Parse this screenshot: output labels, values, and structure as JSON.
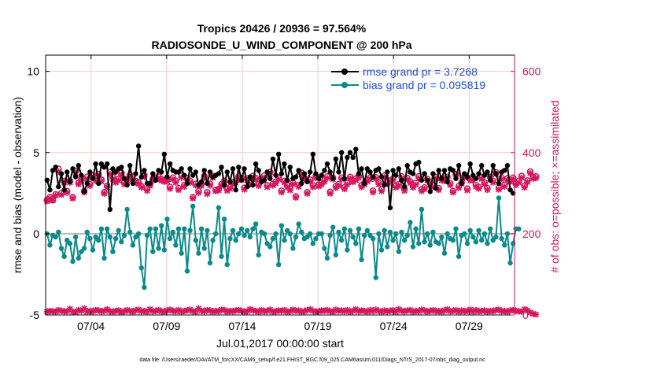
{
  "chart_data": {
    "type": "line",
    "title_line1": "Tropics 20426 / 20936 = 97.564%",
    "title_line2": "RADIOSONDE_U_WIND_COMPONENT @ 200 hPa",
    "xlabel": "Jul.01,2017 00:00:00 start",
    "ylabel_left": "rmse and bias (model - observation)",
    "ylabel_right": "# of obs: o=possible; ×=assimilated",
    "footer": "data file: /Users/raeder/DAI/ATM_forcXX/CAM6_setup/f.e21.FHIST_BGC.f09_025.CAM6assim.011/Diags_NTrS_2017-07/obs_diag_output.nc",
    "x_ticks": [
      {
        "day": 4,
        "label": "07/04"
      },
      {
        "day": 9,
        "label": "07/09"
      },
      {
        "day": 14,
        "label": "07/14"
      },
      {
        "day": 19,
        "label": "07/19"
      },
      {
        "day": 24,
        "label": "07/24"
      },
      {
        "day": 29,
        "label": "07/29"
      }
    ],
    "xlim_days": [
      1,
      32
    ],
    "ylim_left": [
      -5,
      11
    ],
    "yticks_left": [
      {
        "value": 10,
        "label": "10"
      },
      {
        "value": 5,
        "label": "5"
      },
      {
        "value": 0,
        "label": "0"
      },
      {
        "value": -5,
        "label": "-5"
      }
    ],
    "ylim_right": [
      0,
      640
    ],
    "yticks_right": [
      {
        "value": 0,
        "label": "0"
      },
      {
        "value": 200,
        "label": "200"
      },
      {
        "value": 400,
        "label": "400"
      },
      {
        "value": 600,
        "label": "600"
      }
    ],
    "grid": true,
    "legend": [
      {
        "label": "rmse grand pr = 3.7268",
        "color": "#000000"
      },
      {
        "label": "bias grand pr = 0.095819",
        "color": "#0a8a8a"
      }
    ],
    "colors": {
      "rmse": "#000000",
      "bias": "#0a8a8a",
      "obs": "#d6155e",
      "legend_text": "#1f4fd8",
      "zero_line": "#bcbcbc",
      "grid": "#f2c8c8"
    },
    "series": [
      {
        "name": "rmse",
        "axis": "left",
        "values": [
          3.3,
          2.7,
          3.9,
          4.1,
          2.9,
          3.7,
          2.7,
          3.8,
          3.2,
          4.0,
          3.5,
          4.2,
          3.6,
          2.6,
          3.1,
          3.8,
          3.4,
          4.3,
          3.1,
          4.3,
          4.1,
          4.3,
          1.5,
          4.0,
          3.8,
          4.0,
          4.1,
          3.4,
          3.0,
          4.2,
          3.1,
          3.7,
          5.4,
          3.5,
          3.9,
          3.1,
          3.1,
          3.7,
          3.3,
          3.9,
          3.8,
          4.9,
          3.5,
          4.3,
          3.9,
          3.8,
          3.8,
          4.0,
          3.6,
          3.1,
          4.0,
          3.6,
          3.8,
          3.0,
          3.2,
          3.9,
          3.1,
          3.8,
          3.5,
          3.6,
          3.7,
          4.1,
          3.0,
          3.8,
          3.2,
          4.0,
          2.7,
          4.1,
          3.3,
          4.0,
          2.9,
          3.5,
          3.0,
          4.3,
          3.9,
          3.2,
          3.3,
          3.8,
          3.4,
          4.6,
          3.6,
          4.9,
          3.7,
          4.3,
          3.3,
          4.1,
          3.4,
          3.5,
          3.9,
          3.1,
          3.7,
          3.2,
          3.8,
          4.9,
          3.7,
          3.4,
          3.6,
          3.9,
          4.3,
          3.8,
          3.4,
          4.6,
          3.8,
          5.0,
          3.4,
          4.7,
          5.0,
          4.7,
          5.2,
          3.7,
          4.0,
          3.1,
          4.0,
          3.8,
          3.5,
          3.9,
          4.0,
          3.5,
          3.0,
          3.8,
          1.6,
          3.9,
          3.6,
          4.0,
          3.3,
          2.9,
          4.2,
          3.8,
          3.7,
          4.3,
          4.4,
          3.3,
          3.7,
          3.3,
          2.6,
          3.7,
          2.8,
          3.9,
          3.4,
          3.9,
          3.2,
          4.0,
          3.9,
          3.4,
          4.2,
          3.1,
          3.7,
          3.5,
          4.3,
          3.6,
          3.4,
          3.7,
          4.2,
          3.6,
          3.8,
          3.3,
          4.2,
          3.7,
          3.1,
          3.8,
          3.9,
          4.2,
          2.7,
          2.5
        ]
      },
      {
        "name": "bias",
        "axis": "left",
        "values": [
          0.0,
          -0.7,
          -0.1,
          -0.2,
          0.1,
          -0.9,
          -1.4,
          -0.4,
          -0.6,
          -1.7,
          -0.2,
          -1.5,
          -1.1,
          -0.9,
          0.1,
          -0.3,
          -1.0,
          -0.2,
          -0.4,
          0.3,
          -1.5,
          0.3,
          -0.2,
          -1.1,
          -0.3,
          0.2,
          -0.5,
          -0.1,
          1.5,
          0.1,
          -0.7,
          -0.2,
          0.0,
          -2.1,
          -3.3,
          -0.1,
          0.3,
          -1.1,
          0.3,
          -0.9,
          0.5,
          -1.0,
          0.9,
          -0.3,
          0.1,
          -0.7,
          0.3,
          -1.2,
          0.3,
          -2.3,
          0.2,
          1.7,
          -0.4,
          -1.2,
          0.3,
          -0.9,
          0.2,
          -1.8,
          -0.4,
          0.0,
          1.6,
          -1.4,
          0.9,
          -1.9,
          -0.3,
          0.2,
          -0.4,
          0.0,
          0.3,
          -0.1,
          0.2,
          -0.2,
          0.3,
          0.6,
          -1.3,
          0.1,
          0.0,
          -0.6,
          -0.8,
          -0.3,
          0.0,
          -1.9,
          0.5,
          -0.4,
          0.2,
          0.0,
          -0.9,
          -0.2,
          0.6,
          0.1,
          -0.3,
          -0.2,
          0.0,
          -0.6,
          -0.3,
          0.0,
          0.0,
          -0.9,
          -1.5,
          -0.1,
          0.4,
          -1.3,
          0.1,
          -0.4,
          0.3,
          -1.0,
          0.2,
          -0.2,
          -0.6,
          0.3,
          -1.6,
          -0.1,
          0.2,
          -0.1,
          -0.3,
          -2.7,
          0.0,
          -1.0,
          0.2,
          -0.8,
          0.1,
          -0.4,
          0.0,
          -1.1,
          0.1,
          -0.4,
          -0.1,
          0.7,
          -0.8,
          0.3,
          -0.6,
          1.5,
          -0.5,
          0.0,
          -0.7,
          0.1,
          -0.5,
          -0.6,
          -0.2,
          -1.2,
          0.0,
          -0.3,
          -0.4,
          0.3,
          -1.4,
          -0.1,
          0.0,
          -0.6,
          0.2,
          -0.2,
          -0.5,
          0.2,
          -0.4,
          0.0,
          -0.6,
          0.3,
          -0.4,
          -0.2,
          2.2,
          -0.3,
          -0.7,
          0.0,
          -1.8,
          -0.6,
          0.3,
          0.3
        ]
      },
      {
        "name": "obs_possible",
        "axis": "right",
        "marker": "o",
        "values": [
          283,
          290,
          283,
          297,
          360,
          300,
          330,
          305,
          330,
          290,
          355,
          325,
          335,
          305,
          340,
          322,
          343,
          335,
          347,
          333,
          302,
          318,
          352,
          340,
          330,
          335,
          350,
          326,
          335,
          345,
          333,
          330,
          327,
          317,
          344,
          310,
          322,
          335,
          338,
          340,
          335,
          332,
          333,
          315,
          338,
          330,
          312,
          343,
          320,
          337,
          330,
          290,
          323,
          305,
          322,
          342,
          302,
          323,
          342,
          308,
          310,
          322,
          330,
          310,
          315,
          327,
          330,
          341,
          337,
          313,
          336,
          325,
          342,
          337,
          322,
          335,
          343,
          319,
          352,
          323,
          328,
          338,
          306,
          330,
          319,
          311,
          326,
          292,
          320,
          350,
          338,
          302,
          333,
          319,
          342,
          321,
          325,
          332,
          341,
          303,
          338,
          317,
          322,
          338,
          314,
          325,
          340,
          331,
          336,
          342,
          319,
          325,
          333,
          338,
          306,
          339,
          326,
          309,
          343,
          327,
          331,
          336,
          318,
          322,
          341,
          310,
          337,
          329,
          318,
          325,
          341,
          309,
          314,
          335,
          326,
          319,
          340,
          312,
          335,
          334,
          340,
          324,
          305,
          346,
          317,
          327,
          342,
          311,
          335,
          336,
          320,
          315,
          339,
          326,
          312,
          340,
          330,
          351,
          313,
          338,
          320,
          336,
          332,
          338,
          324,
          330,
          342,
          318,
          331,
          353,
          340,
          341
        ]
      },
      {
        "name": "obs_assimilated",
        "axis": "right",
        "marker": "x",
        "values": [
          280,
          287,
          282,
          294,
          353,
          296,
          327,
          301,
          326,
          287,
          350,
          322,
          332,
          302,
          335,
          318,
          338,
          330,
          342,
          329,
          299,
          315,
          347,
          335,
          326,
          331,
          345,
          322,
          331,
          340,
          329,
          326,
          323,
          314,
          340,
          306,
          318,
          331,
          334,
          335,
          331,
          328,
          329,
          311,
          334,
          326,
          308,
          338,
          316,
          332,
          326,
          287,
          319,
          301,
          318,
          337,
          298,
          319,
          338,
          305,
          307,
          318,
          326,
          306,
          311,
          323,
          326,
          337,
          333,
          309,
          332,
          321,
          337,
          333,
          318,
          331,
          338,
          315,
          347,
          319,
          324,
          334,
          302,
          326,
          315,
          307,
          322,
          289,
          316,
          346,
          334,
          299,
          329,
          315,
          337,
          317,
          321,
          328,
          337,
          299,
          334,
          313,
          318,
          334,
          310,
          321,
          336,
          327,
          332,
          338,
          315,
          321,
          329,
          334,
          302,
          335,
          322,
          305,
          339,
          323,
          327,
          332,
          314,
          318,
          337,
          306,
          333,
          325,
          314,
          321,
          337,
          305,
          310,
          331,
          322,
          315,
          336,
          308,
          331,
          330,
          336,
          320,
          302,
          342,
          313,
          323,
          338,
          307,
          331,
          332,
          316,
          311,
          335,
          322,
          308,
          336,
          326,
          347,
          309,
          334,
          316,
          332,
          328,
          334,
          320,
          326,
          338,
          314,
          327,
          349,
          336,
          337
        ]
      },
      {
        "name": "obs_assimilated_low",
        "axis": "right",
        "marker": "x",
        "values": [
          8,
          10,
          9,
          8,
          12,
          10,
          9,
          9,
          15,
          8,
          7,
          12,
          10,
          16,
          8,
          10,
          9,
          12,
          11,
          9,
          10,
          14,
          9,
          8,
          10,
          11,
          7,
          9,
          12,
          10,
          8,
          11,
          13,
          9,
          10,
          8,
          14,
          9,
          10,
          12,
          9,
          8,
          11,
          13,
          10,
          9,
          12,
          8,
          10,
          11,
          13,
          9,
          8,
          16,
          10,
          9,
          12,
          11,
          8,
          10,
          9,
          13,
          12,
          8,
          10,
          9,
          11,
          12,
          10,
          8,
          9,
          14,
          11,
          10,
          8,
          12,
          9,
          10,
          13,
          8,
          9,
          11,
          10,
          12,
          8,
          9,
          13,
          10,
          11,
          8,
          9,
          12,
          14,
          10,
          8,
          9,
          11,
          10,
          12,
          9,
          8,
          13,
          10,
          11,
          9,
          12,
          8,
          10,
          14,
          9,
          11,
          10,
          8,
          12,
          9,
          13,
          10,
          8,
          11,
          9,
          10,
          12,
          8,
          14,
          10,
          9,
          11,
          12,
          8,
          10,
          9,
          13,
          11,
          8,
          10,
          12,
          9,
          10,
          8,
          11,
          14,
          9,
          10,
          12,
          8,
          11,
          9,
          10,
          13,
          8,
          12,
          9,
          10,
          11,
          8,
          10,
          9,
          12,
          13,
          9,
          10,
          8,
          11,
          12,
          10,
          9,
          8,
          14,
          11,
          6,
          3,
          1
        ]
      }
    ]
  }
}
